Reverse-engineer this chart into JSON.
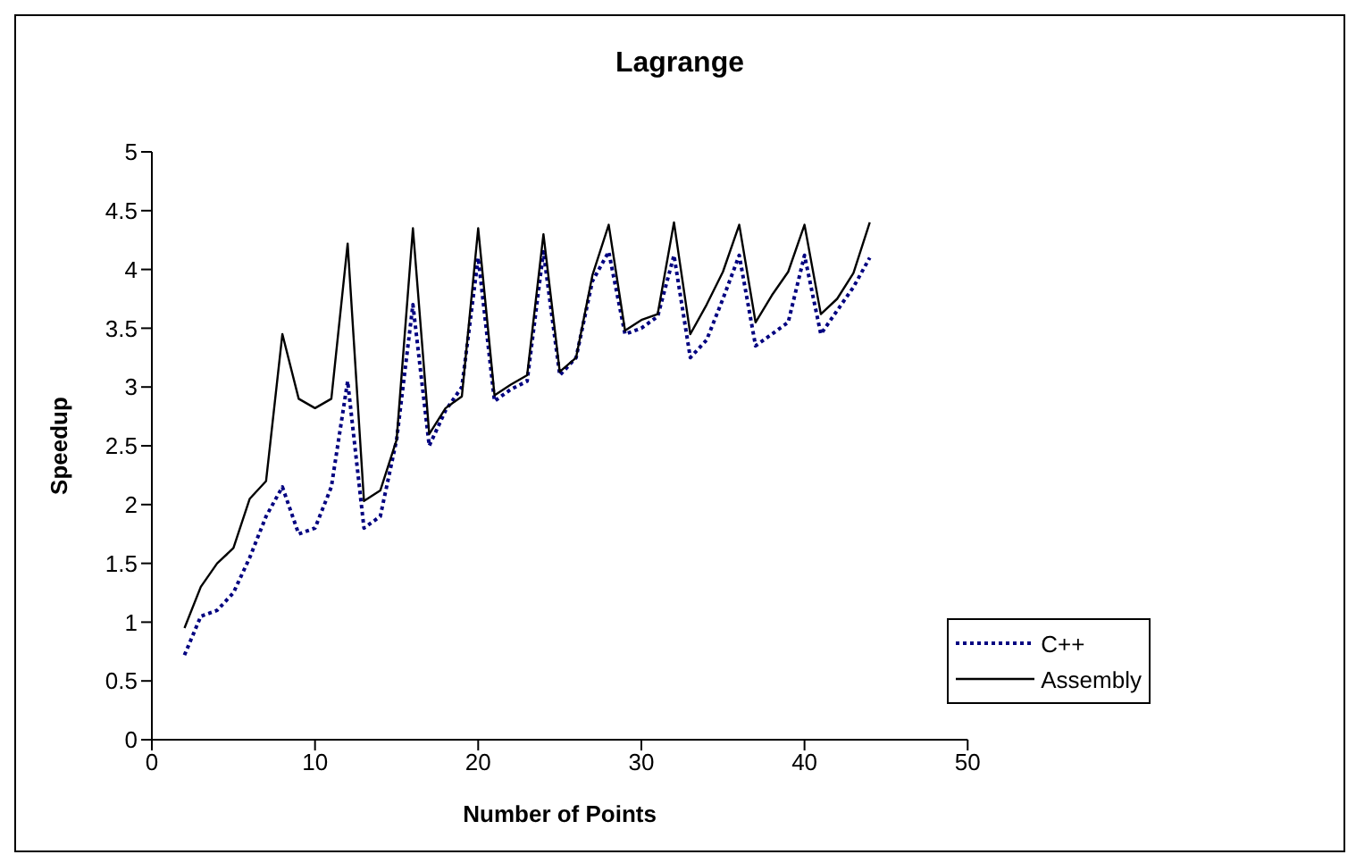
{
  "chart_data": {
    "type": "line",
    "title": "Lagrange",
    "xlabel": "Number of Points",
    "ylabel": "Speedup",
    "x": [
      2,
      3,
      4,
      5,
      6,
      7,
      8,
      9,
      10,
      11,
      12,
      13,
      14,
      15,
      16,
      17,
      18,
      19,
      20,
      21,
      22,
      23,
      24,
      25,
      26,
      27,
      28,
      29,
      30,
      31,
      32,
      33,
      34,
      35,
      36,
      37,
      38,
      39,
      40,
      41,
      42,
      43,
      44
    ],
    "series": [
      {
        "name": "C++",
        "color": "#000080",
        "line_style": "dotted",
        "values": [
          0.72,
          1.05,
          1.1,
          1.25,
          1.55,
          1.9,
          2.15,
          1.75,
          1.8,
          2.15,
          3.05,
          1.8,
          1.9,
          2.55,
          3.7,
          2.5,
          2.8,
          3.0,
          4.1,
          2.88,
          2.98,
          3.05,
          4.15,
          3.1,
          3.25,
          3.9,
          4.15,
          3.45,
          3.5,
          3.6,
          4.12,
          3.25,
          3.4,
          3.75,
          4.12,
          3.35,
          3.45,
          3.55,
          4.12,
          3.45,
          3.65,
          3.85,
          4.1
        ]
      },
      {
        "name": "Assembly",
        "color": "#000000",
        "line_style": "solid",
        "values": [
          0.95,
          1.3,
          1.5,
          1.63,
          2.05,
          2.2,
          3.45,
          2.9,
          2.82,
          2.9,
          4.22,
          2.03,
          2.12,
          2.55,
          4.35,
          2.6,
          2.82,
          2.92,
          4.35,
          2.93,
          3.02,
          3.1,
          4.3,
          3.13,
          3.25,
          3.95,
          4.38,
          3.48,
          3.57,
          3.62,
          4.4,
          3.45,
          3.7,
          3.98,
          4.38,
          3.55,
          3.78,
          3.98,
          4.38,
          3.62,
          3.75,
          3.97,
          4.4
        ]
      }
    ],
    "xlim": [
      0,
      50
    ],
    "xticks": [
      0,
      10,
      20,
      30,
      40,
      50
    ],
    "ylim": [
      0,
      5
    ],
    "yticks": [
      0,
      0.5,
      1,
      1.5,
      2,
      2.5,
      3,
      3.5,
      4,
      4.5,
      5
    ],
    "grid": false,
    "legend": "bottom right",
    "marker": "none"
  }
}
